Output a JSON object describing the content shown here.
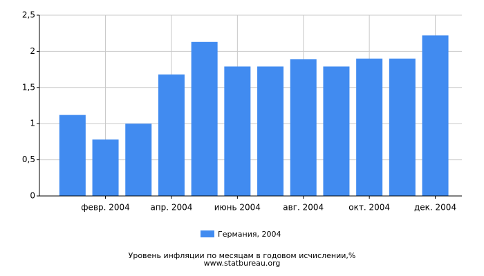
{
  "chart_data": {
    "type": "bar",
    "title": "Уровень инфляции по месяцам в годовом исчислении,%",
    "subtitle": "www.statbureau.org",
    "categories": [
      null,
      "февр. 2004",
      null,
      "апр. 2004",
      null,
      "июнь 2004",
      null,
      "авг. 2004",
      null,
      "окт. 2004",
      null,
      "дек. 2004"
    ],
    "series": [
      {
        "name": "Германия, 2004",
        "color": "#418bf0",
        "values": [
          1.12,
          0.78,
          1.0,
          1.68,
          2.13,
          1.79,
          1.79,
          1.89,
          1.79,
          1.9,
          1.9,
          2.22
        ]
      }
    ],
    "ylim": [
      0,
      2.5
    ],
    "yticks": [
      0,
      {
        "value": 0.5,
        "label": "0,5"
      },
      1,
      {
        "value": 1.5,
        "label": "1,5"
      },
      2,
      {
        "value": 2.5,
        "label": "2,5"
      }
    ],
    "grid": true
  }
}
